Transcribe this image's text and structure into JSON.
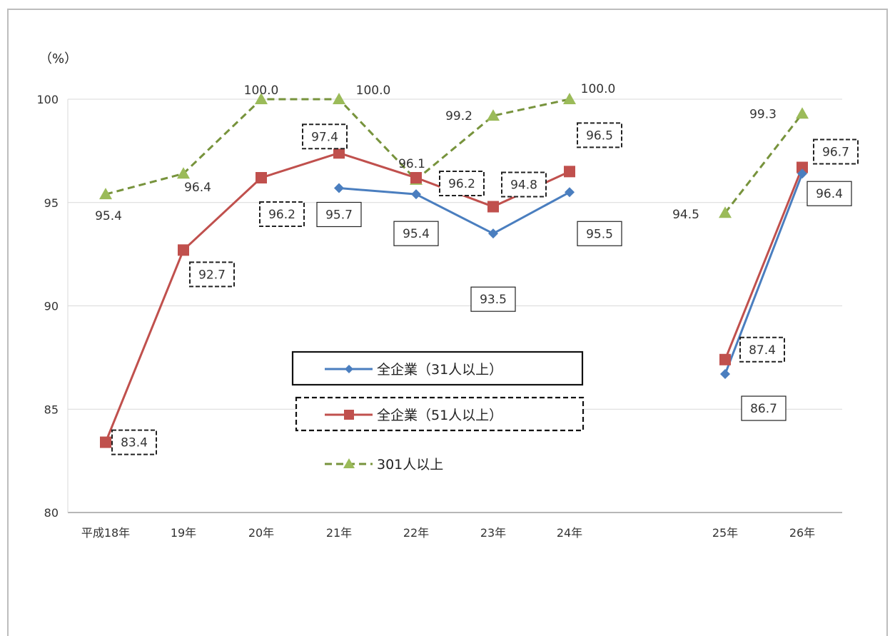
{
  "chart_data": {
    "type": "line",
    "unit_label": "（%）",
    "categories": [
      "平成18年",
      "19年",
      "20年",
      "21年",
      "22年",
      "23年",
      "24年",
      "25年",
      "26年"
    ],
    "ylim": [
      80,
      100
    ],
    "yticks": [
      "80",
      "85",
      "90",
      "95",
      "100"
    ],
    "grid": true,
    "legend_position": "center",
    "series": [
      {
        "name": "全企業（31人以上）",
        "color": "#4a7ebf",
        "marker": "diamond",
        "line_style": "solid",
        "label_box": "solid",
        "values": [
          null,
          null,
          null,
          95.7,
          95.4,
          93.5,
          95.5,
          86.7,
          96.4
        ],
        "labels": [
          "",
          "",
          "",
          "95.7",
          "95.4",
          "93.5",
          "95.5",
          "86.7",
          "96.4"
        ]
      },
      {
        "name": "全企業（51人以上）",
        "color": "#c0504d",
        "marker": "square",
        "line_style": "solid",
        "label_box": "dashed",
        "values": [
          83.4,
          92.7,
          96.2,
          97.4,
          96.2,
          94.8,
          96.5,
          87.4,
          96.7
        ],
        "labels": [
          "83.4",
          "92.7",
          "96.2",
          "97.4",
          "96.2",
          "94.8",
          "96.5",
          "87.4",
          "96.7"
        ]
      },
      {
        "name": "301人以上",
        "color": "#77933c",
        "marker_color": "#9bbb59",
        "marker": "triangle",
        "line_style": "dashed",
        "label_box": "none",
        "values": [
          95.4,
          96.4,
          100.0,
          100.0,
          96.1,
          99.2,
          100.0,
          94.5,
          99.3
        ],
        "labels": [
          "95.4",
          "96.4",
          "100.0",
          "100.0",
          "96.1",
          "99.2",
          "100.0",
          "94.5",
          "99.3"
        ]
      }
    ]
  }
}
